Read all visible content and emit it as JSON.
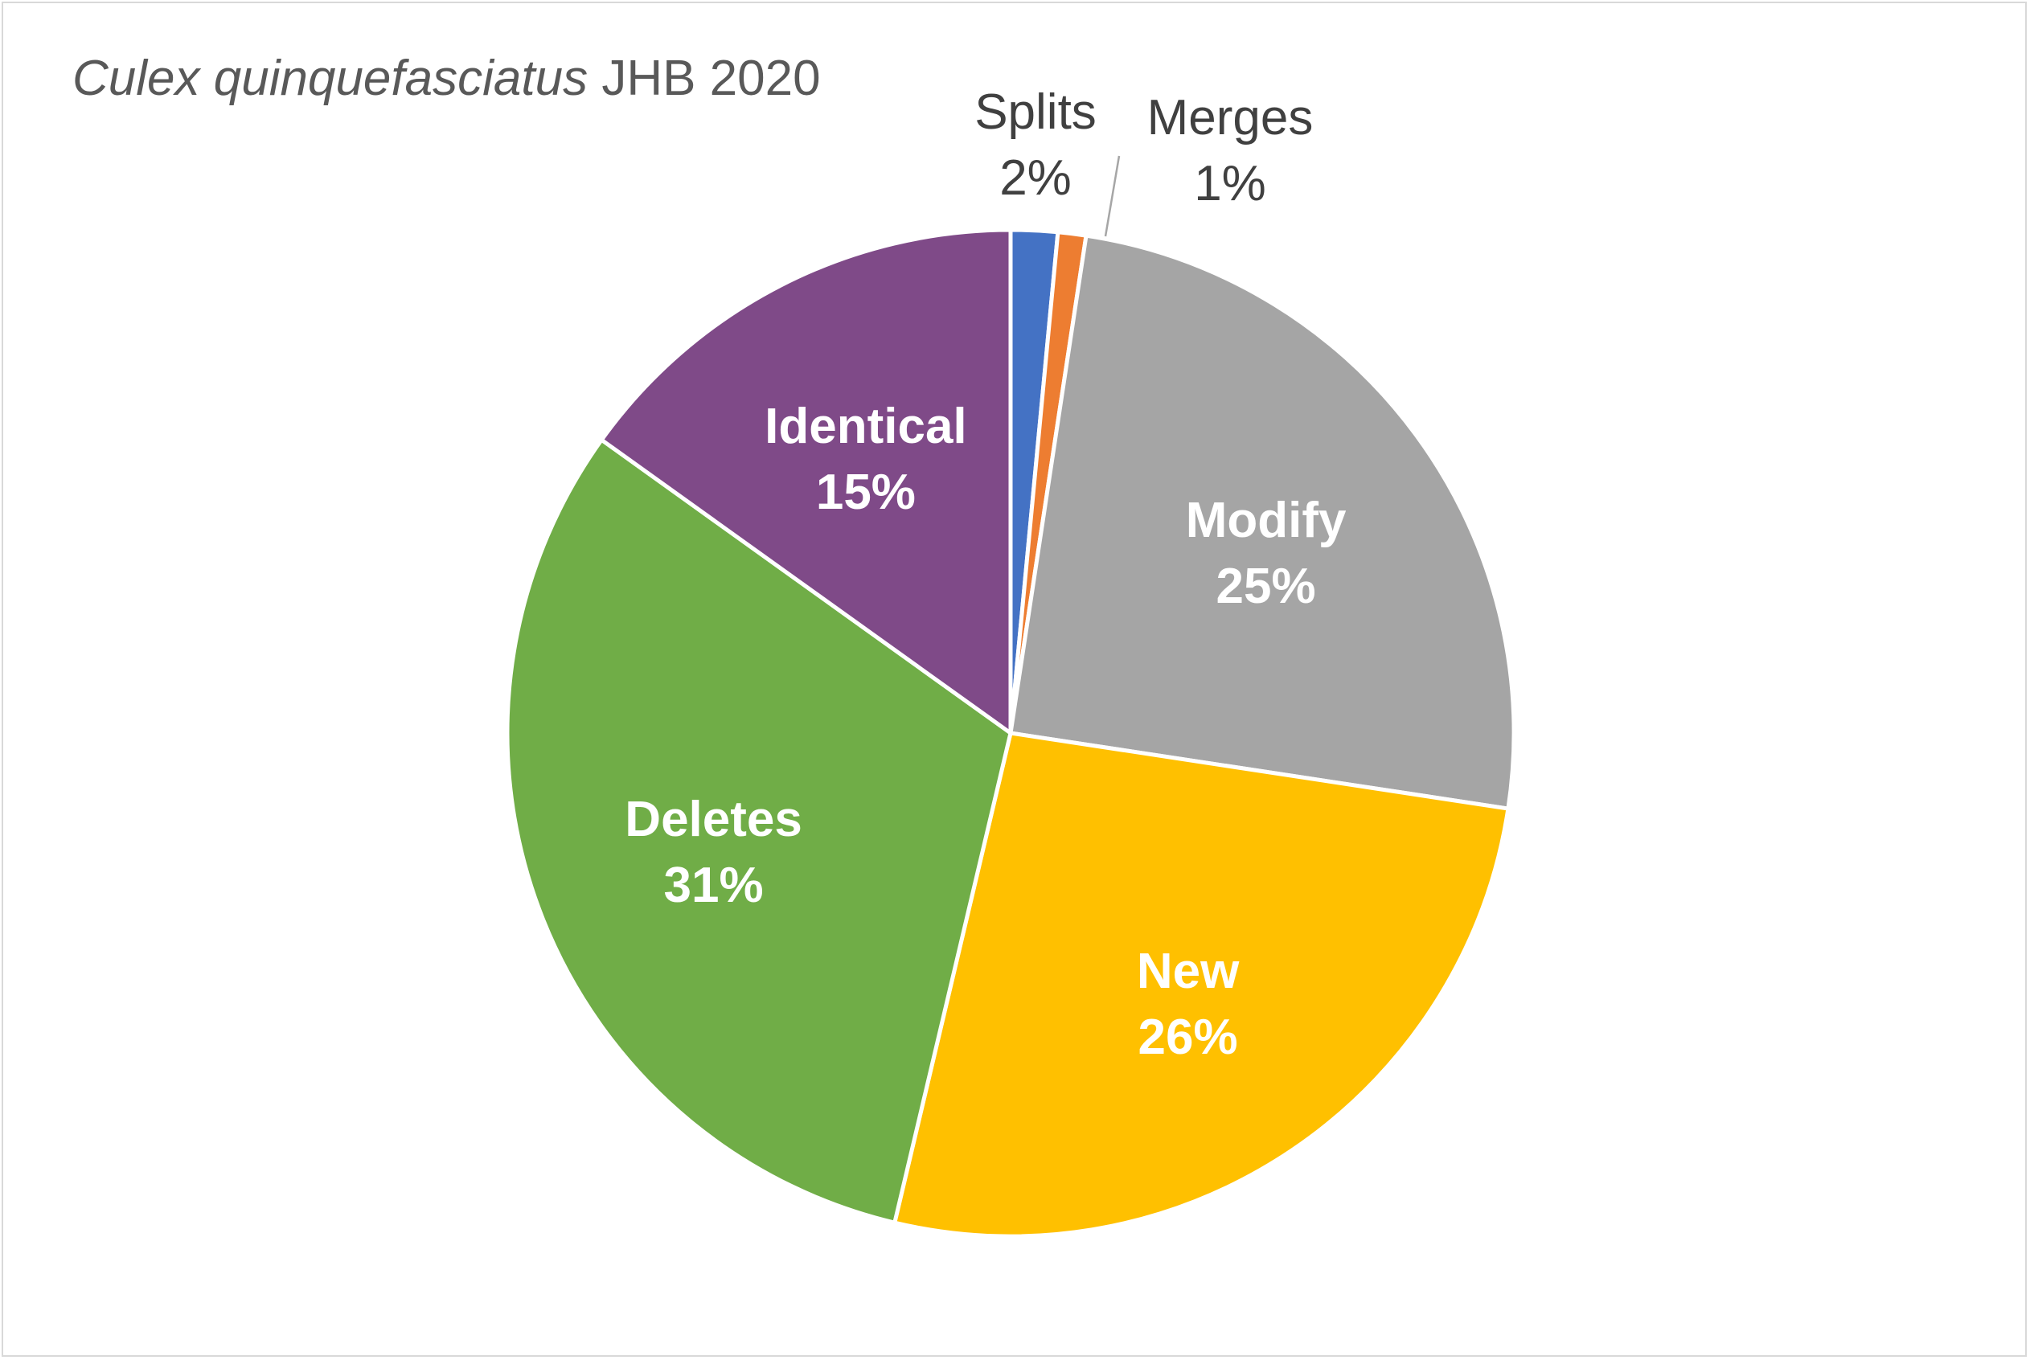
{
  "chart_data": {
    "type": "pie",
    "title": {
      "species": "Culex quinquefasciatus",
      "rest": "JHB 2020"
    },
    "slices": [
      {
        "name": "Splits",
        "value": 1.5,
        "label": "2%",
        "color": "#4472c4",
        "label_style": "outside"
      },
      {
        "name": "Merges",
        "value": 0.9,
        "label": "1%",
        "color": "#ed7d31",
        "label_style": "outside"
      },
      {
        "name": "Modify",
        "value": 25.0,
        "label": "25%",
        "color": "#a5a5a5",
        "label_style": "inside"
      },
      {
        "name": "New",
        "value": 26.3,
        "label": "26%",
        "color": "#ffc000",
        "label_style": "inside"
      },
      {
        "name": "Deletes",
        "value": 31.2,
        "label": "31%",
        "color": "#70ad47",
        "label_style": "inside"
      },
      {
        "name": "Identical",
        "value": 15.1,
        "label": "15%",
        "color": "#7f4a88",
        "label_style": "inside"
      }
    ],
    "start_angle_deg": 0,
    "direction": "clockwise",
    "legend": "none"
  }
}
